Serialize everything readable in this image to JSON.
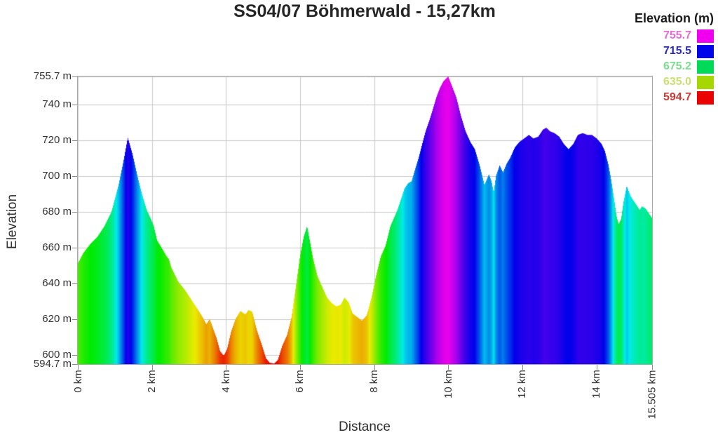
{
  "title": "SS04/07 Böhmerwald - 15,27km",
  "axes": {
    "x_label": "Distance",
    "y_label": "Elevation",
    "x_ticks": [
      {
        "value": 0,
        "label": "0 km"
      },
      {
        "value": 2,
        "label": "2 km"
      },
      {
        "value": 4,
        "label": "4 km"
      },
      {
        "value": 6,
        "label": "6 km"
      },
      {
        "value": 8,
        "label": "8 km"
      },
      {
        "value": 10,
        "label": "10 km"
      },
      {
        "value": 12,
        "label": "12 km"
      },
      {
        "value": 14,
        "label": "14 km"
      },
      {
        "value": 15.505,
        "label": "15.505 km"
      }
    ],
    "y_ticks": [
      {
        "value": 755.7,
        "label": "755.7 m"
      },
      {
        "value": 740,
        "label": "740 m"
      },
      {
        "value": 720,
        "label": "720 m"
      },
      {
        "value": 700,
        "label": "700 m"
      },
      {
        "value": 680,
        "label": "680 m"
      },
      {
        "value": 660,
        "label": "660 m"
      },
      {
        "value": 640,
        "label": "640 m"
      },
      {
        "value": 620,
        "label": "620 m"
      },
      {
        "value": 600,
        "label": "600 m"
      },
      {
        "value": 594.7,
        "label": "594.7 m"
      }
    ]
  },
  "legend": {
    "title": "Elevation (m)",
    "entries": [
      {
        "label": "755.7",
        "swatch_color": "#ef00ef",
        "text_color": "#e66ad9"
      },
      {
        "label": "715.5",
        "swatch_color": "#0004ea",
        "text_color": "#2a2ab8"
      },
      {
        "label": "675.2",
        "swatch_color": "#00da58",
        "text_color": "#7ade8f"
      },
      {
        "label": "635.0",
        "swatch_color": "#a6d700",
        "text_color": "#c9e070"
      },
      {
        "label": "594.7",
        "swatch_color": "#ea0200",
        "text_color": "#d03a35"
      }
    ]
  },
  "chart_data": {
    "type": "area",
    "title": "SS04/07 Böhmerwald - 15,27km",
    "xlabel": "Distance",
    "ylabel": "Elevation",
    "x_unit": "km",
    "y_unit": "m",
    "xlim": [
      0,
      15.505
    ],
    "ylim": [
      594.7,
      755.7
    ],
    "grid": true,
    "legend_position": "top-right",
    "color_encoding": "elevation",
    "colormap": {
      "min": 594.7,
      "max": 755.7,
      "saturation": 100,
      "lightness": 46,
      "hue_stops": [
        [
          0,
          0
        ],
        [
          0.25,
          73
        ],
        [
          0.5,
          143
        ],
        [
          0.75,
          240
        ],
        [
          1,
          300
        ]
      ]
    },
    "profile": [
      [
        0.0,
        651
      ],
      [
        0.15,
        657
      ],
      [
        0.34,
        662
      ],
      [
        0.53,
        666
      ],
      [
        0.72,
        672
      ],
      [
        0.91,
        680
      ],
      [
        1.1,
        695
      ],
      [
        1.23,
        708
      ],
      [
        1.35,
        721.5
      ],
      [
        1.48,
        712
      ],
      [
        1.61,
        700
      ],
      [
        1.73,
        690
      ],
      [
        1.86,
        681
      ],
      [
        1.95,
        677
      ],
      [
        2.05,
        672
      ],
      [
        2.14,
        664
      ],
      [
        2.33,
        657.5
      ],
      [
        2.4,
        655
      ],
      [
        2.46,
        653.5
      ],
      [
        2.52,
        649
      ],
      [
        2.71,
        641
      ],
      [
        2.9,
        636
      ],
      [
        3.09,
        630
      ],
      [
        3.28,
        624
      ],
      [
        3.37,
        621
      ],
      [
        3.47,
        617
      ],
      [
        3.56,
        620
      ],
      [
        3.63,
        616
      ],
      [
        3.75,
        609
      ],
      [
        3.84,
        602
      ],
      [
        3.94,
        599.5
      ],
      [
        4.03,
        603
      ],
      [
        4.14,
        613
      ],
      [
        4.26,
        620
      ],
      [
        4.39,
        624.5
      ],
      [
        4.52,
        622.5
      ],
      [
        4.61,
        625
      ],
      [
        4.71,
        624
      ],
      [
        4.83,
        614
      ],
      [
        4.96,
        606
      ],
      [
        5.08,
        598
      ],
      [
        5.18,
        595.5
      ],
      [
        5.3,
        595
      ],
      [
        5.4,
        597
      ],
      [
        5.52,
        605
      ],
      [
        5.65,
        611
      ],
      [
        5.77,
        621
      ],
      [
        5.9,
        640
      ],
      [
        6.0,
        655
      ],
      [
        6.1,
        666
      ],
      [
        6.19,
        672
      ],
      [
        6.27,
        663
      ],
      [
        6.35,
        654
      ],
      [
        6.47,
        644
      ],
      [
        6.6,
        638
      ],
      [
        6.73,
        632
      ],
      [
        6.85,
        629
      ],
      [
        6.98,
        627
      ],
      [
        7.1,
        628
      ],
      [
        7.2,
        632
      ],
      [
        7.32,
        629
      ],
      [
        7.42,
        623
      ],
      [
        7.55,
        621
      ],
      [
        7.67,
        619
      ],
      [
        7.8,
        622
      ],
      [
        7.93,
        632
      ],
      [
        8.05,
        644
      ],
      [
        8.18,
        655
      ],
      [
        8.31,
        661
      ],
      [
        8.44,
        672
      ],
      [
        8.63,
        681
      ],
      [
        8.82,
        693
      ],
      [
        8.92,
        696
      ],
      [
        9.01,
        697
      ],
      [
        9.11,
        704
      ],
      [
        9.2,
        710
      ],
      [
        9.3,
        718
      ],
      [
        9.39,
        725
      ],
      [
        9.49,
        731
      ],
      [
        9.58,
        737
      ],
      [
        9.68,
        744
      ],
      [
        9.77,
        749
      ],
      [
        9.87,
        753
      ],
      [
        10.0,
        755.7
      ],
      [
        10.09,
        751
      ],
      [
        10.22,
        744
      ],
      [
        10.34,
        734
      ],
      [
        10.47,
        725
      ],
      [
        10.6,
        719
      ],
      [
        10.72,
        715
      ],
      [
        10.85,
        706
      ],
      [
        10.98,
        695
      ],
      [
        11.1,
        701
      ],
      [
        11.17,
        697
      ],
      [
        11.23,
        691
      ],
      [
        11.29,
        700
      ],
      [
        11.39,
        706
      ],
      [
        11.48,
        702
      ],
      [
        11.58,
        707
      ],
      [
        11.67,
        710
      ],
      [
        11.8,
        716
      ],
      [
        11.92,
        719
      ],
      [
        12.05,
        721
      ],
      [
        12.18,
        723
      ],
      [
        12.3,
        721
      ],
      [
        12.43,
        722
      ],
      [
        12.56,
        726
      ],
      [
        12.65,
        727
      ],
      [
        12.75,
        725
      ],
      [
        12.87,
        724
      ],
      [
        13.0,
        722
      ],
      [
        13.12,
        718
      ],
      [
        13.25,
        715
      ],
      [
        13.38,
        718
      ],
      [
        13.5,
        723
      ],
      [
        13.63,
        724
      ],
      [
        13.76,
        723
      ],
      [
        13.88,
        723
      ],
      [
        14.01,
        721
      ],
      [
        14.14,
        718
      ],
      [
        14.23,
        714
      ],
      [
        14.33,
        706
      ],
      [
        14.4,
        698
      ],
      [
        14.48,
        687
      ],
      [
        14.54,
        678
      ],
      [
        14.6,
        673
      ],
      [
        14.67,
        676
      ],
      [
        14.73,
        685
      ],
      [
        14.82,
        694.5
      ],
      [
        14.92,
        689
      ],
      [
        15.01,
        686
      ],
      [
        15.11,
        683
      ],
      [
        15.17,
        681
      ],
      [
        15.23,
        683
      ],
      [
        15.32,
        682
      ],
      [
        15.42,
        679
      ],
      [
        15.505,
        676.5
      ]
    ]
  }
}
